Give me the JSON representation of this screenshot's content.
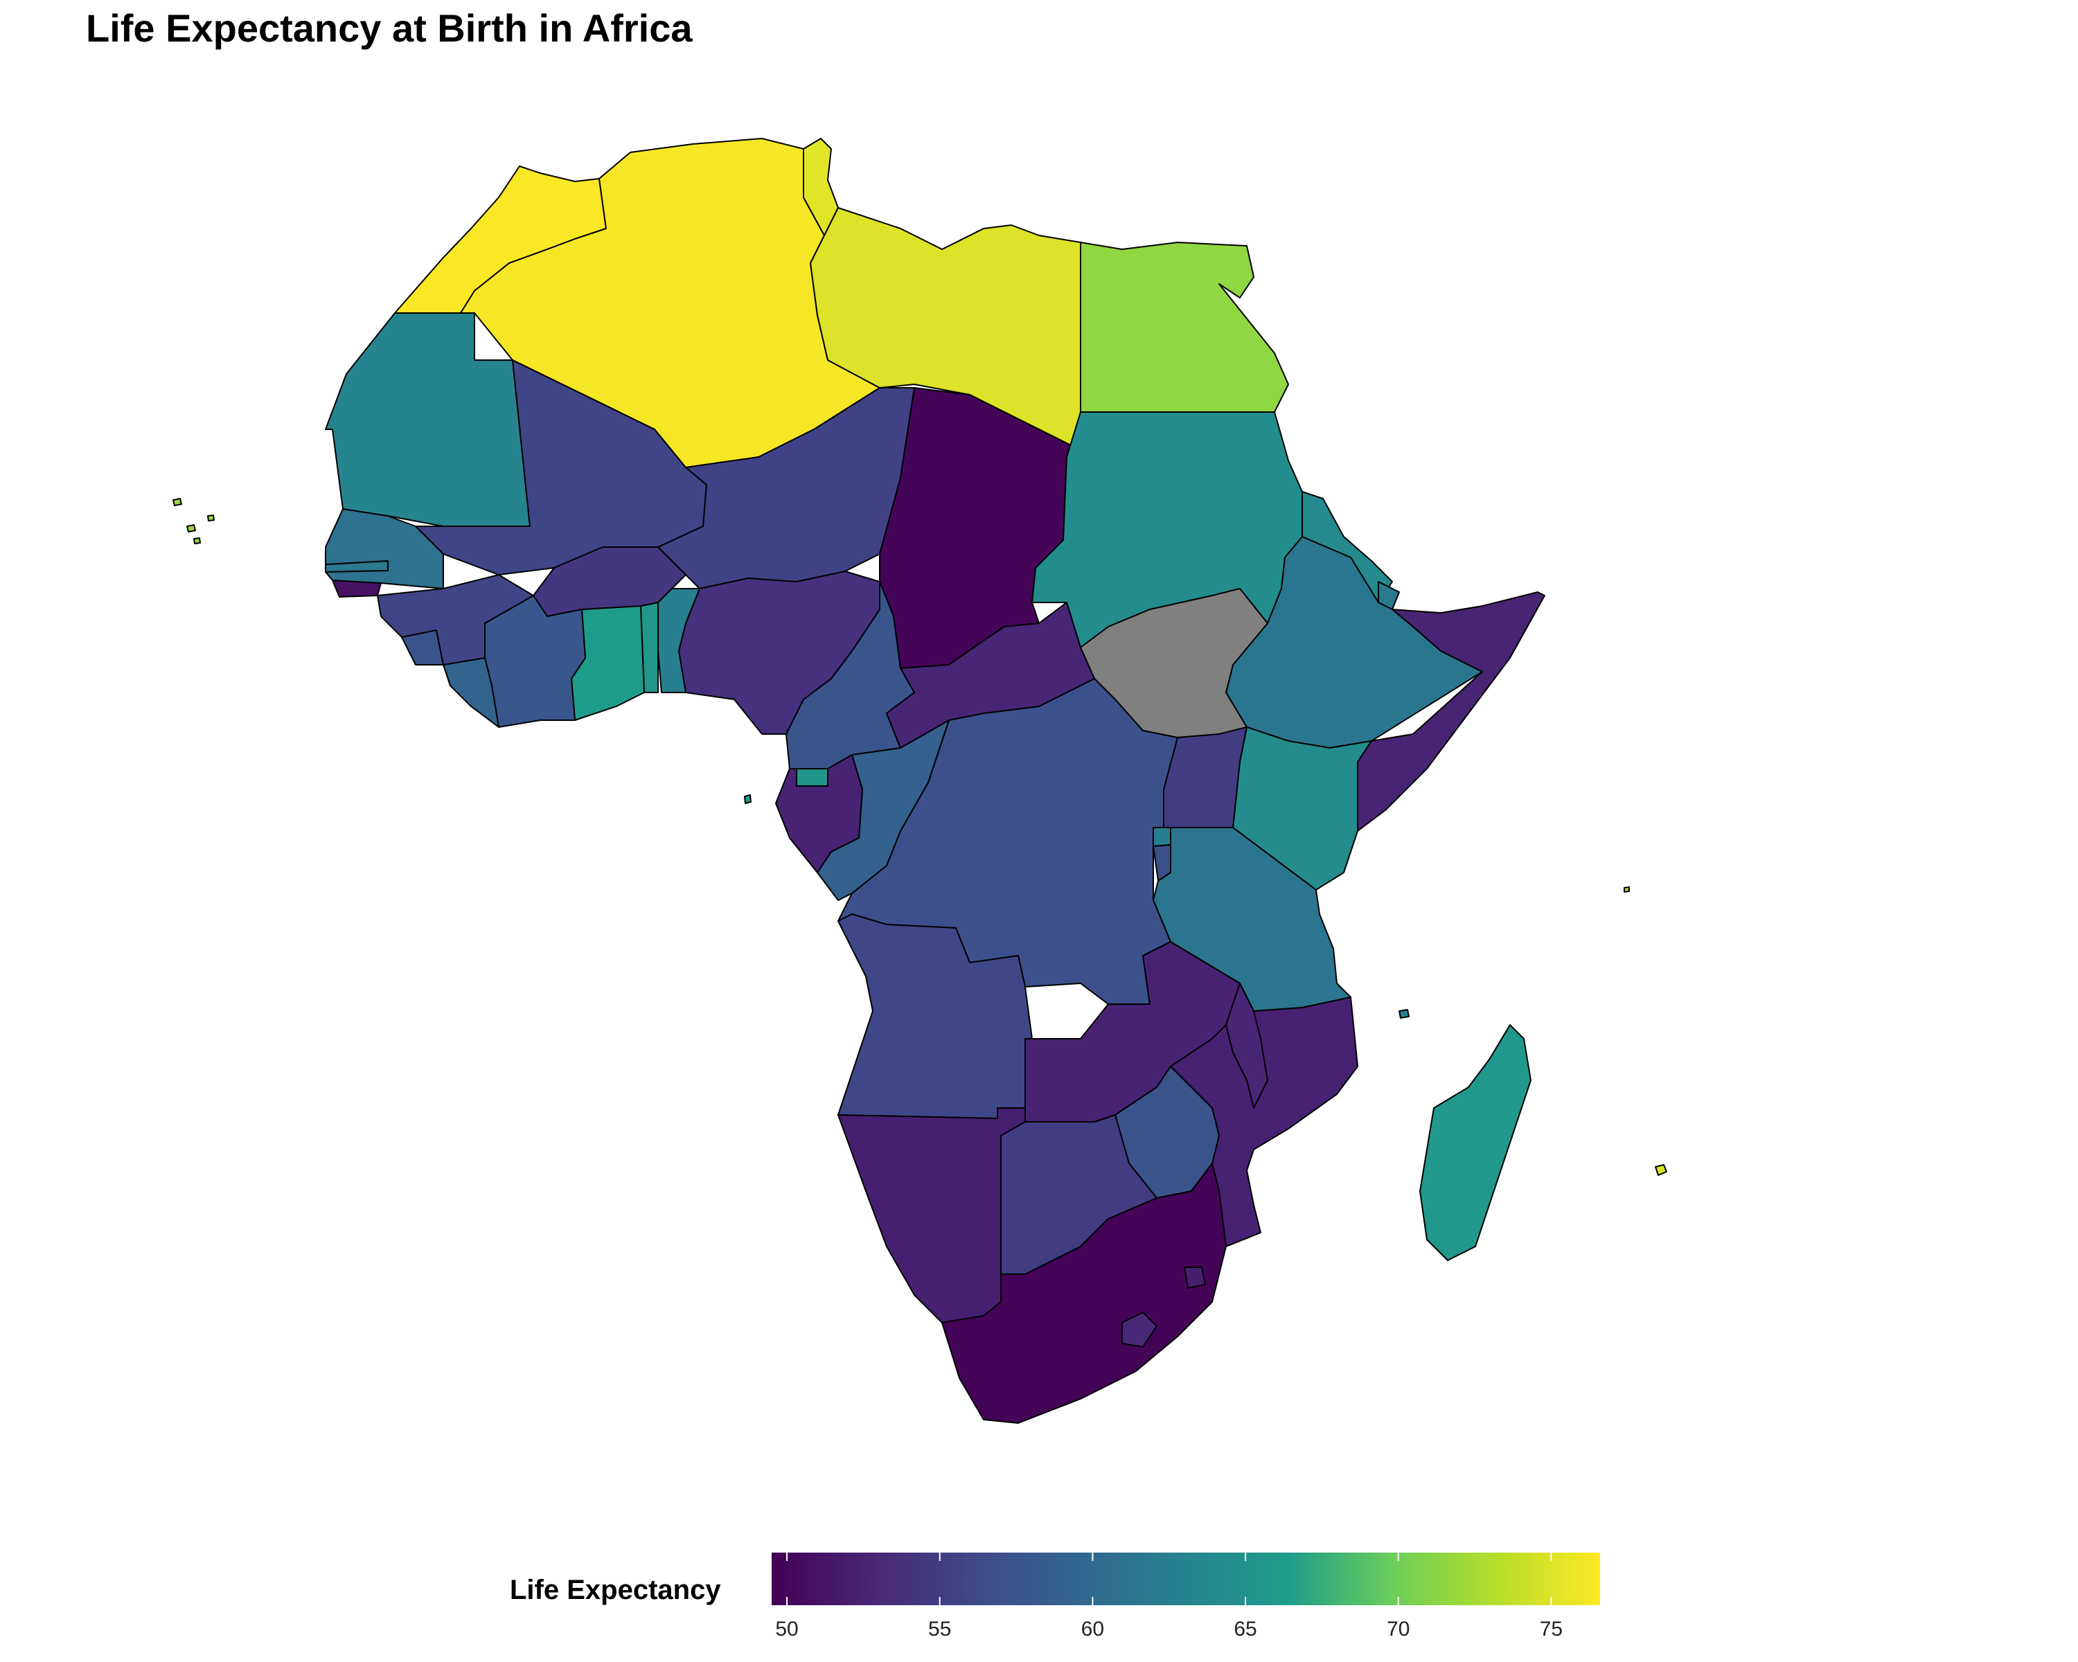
{
  "title": "Life Expectancy at Birth in Africa",
  "legend": {
    "title": "Life Expectancy",
    "min": 49.5,
    "max": 76.6,
    "ticks": [
      50,
      55,
      60,
      65,
      70,
      75
    ],
    "tick_labels": [
      "50",
      "55",
      "60",
      "65",
      "70",
      "75"
    ],
    "missing_color": "#808080"
  },
  "palette": {
    "name": "viridis",
    "stops": [
      "#440154",
      "#482777",
      "#3f4a8a",
      "#31678e",
      "#26838f",
      "#1f9d8a",
      "#6cce5a",
      "#b6de2b",
      "#fee825"
    ]
  },
  "chart_data": {
    "type": "choropleth",
    "title": "Life Expectancy at Birth in Africa",
    "value_label": "Life Expectancy",
    "regions": [
      {
        "name": "Morocco",
        "value": 76.4
      },
      {
        "name": "Algeria",
        "value": 76.2
      },
      {
        "name": "Tunisia",
        "value": 75.3
      },
      {
        "name": "Libya",
        "value": 75.0
      },
      {
        "name": "Egypt",
        "value": 71.5
      },
      {
        "name": "Mauritania",
        "value": 63.2
      },
      {
        "name": "Mali",
        "value": 55.8
      },
      {
        "name": "Niger",
        "value": 55.5
      },
      {
        "name": "Chad",
        "value": 49.9
      },
      {
        "name": "Sudan",
        "value": 64.3
      },
      {
        "name": "South Sudan",
        "value": null
      },
      {
        "name": "Eritrea",
        "value": 64.0
      },
      {
        "name": "Ethiopia",
        "value": 61.5
      },
      {
        "name": "Djibouti",
        "value": 61.8
      },
      {
        "name": "Somalia",
        "value": 52.6
      },
      {
        "name": "Kenya",
        "value": 64.2
      },
      {
        "name": "Uganda",
        "value": 55.0
      },
      {
        "name": "Tanzania",
        "value": 61.3
      },
      {
        "name": "Rwanda",
        "value": 62.5
      },
      {
        "name": "Burundi",
        "value": 57.0
      },
      {
        "name": "DR Congo",
        "value": 57.1
      },
      {
        "name": "Congo",
        "value": 59.0
      },
      {
        "name": "Gabon",
        "value": 52.5
      },
      {
        "name": "Equatorial Guinea",
        "value": 65.3
      },
      {
        "name": "Cameroon",
        "value": 57.6
      },
      {
        "name": "Central African Republic",
        "value": 52.8
      },
      {
        "name": "Nigeria",
        "value": 53.9
      },
      {
        "name": "Benin",
        "value": 62.6
      },
      {
        "name": "Togo",
        "value": 65.5
      },
      {
        "name": "Ghana",
        "value": 66.2
      },
      {
        "name": "Burkina Faso",
        "value": 54.3
      },
      {
        "name": "Côte d'Ivoire",
        "value": 57.8
      },
      {
        "name": "Liberia",
        "value": 59.3
      },
      {
        "name": "Sierra Leone",
        "value": 57.4
      },
      {
        "name": "Guinea",
        "value": 55.8
      },
      {
        "name": "Guinea-Bissau",
        "value": 50.9
      },
      {
        "name": "Senegal",
        "value": 61.0
      },
      {
        "name": "Gambia",
        "value": 61.8
      },
      {
        "name": "Angola",
        "value": 56.0
      },
      {
        "name": "Zambia",
        "value": 52.5
      },
      {
        "name": "Malawi",
        "value": 52.8
      },
      {
        "name": "Mozambique",
        "value": 52.4
      },
      {
        "name": "Zimbabwe",
        "value": 57.3
      },
      {
        "name": "Namibia",
        "value": 52.2
      },
      {
        "name": "Botswana",
        "value": 55.0
      },
      {
        "name": "South Africa",
        "value": 49.8
      },
      {
        "name": "Lesotho",
        "value": 53.0
      },
      {
        "name": "Eswatini",
        "value": 52.0
      },
      {
        "name": "Madagascar",
        "value": 65.8
      },
      {
        "name": "Mauritius",
        "value": 74.8
      },
      {
        "name": "Cape Verde",
        "value": 72.0
      },
      {
        "name": "Comoros",
        "value": 63.5
      },
      {
        "name": "Seychelles",
        "value": 73.5
      },
      {
        "name": "Sao Tome and Principe",
        "value": 66.5
      }
    ]
  }
}
